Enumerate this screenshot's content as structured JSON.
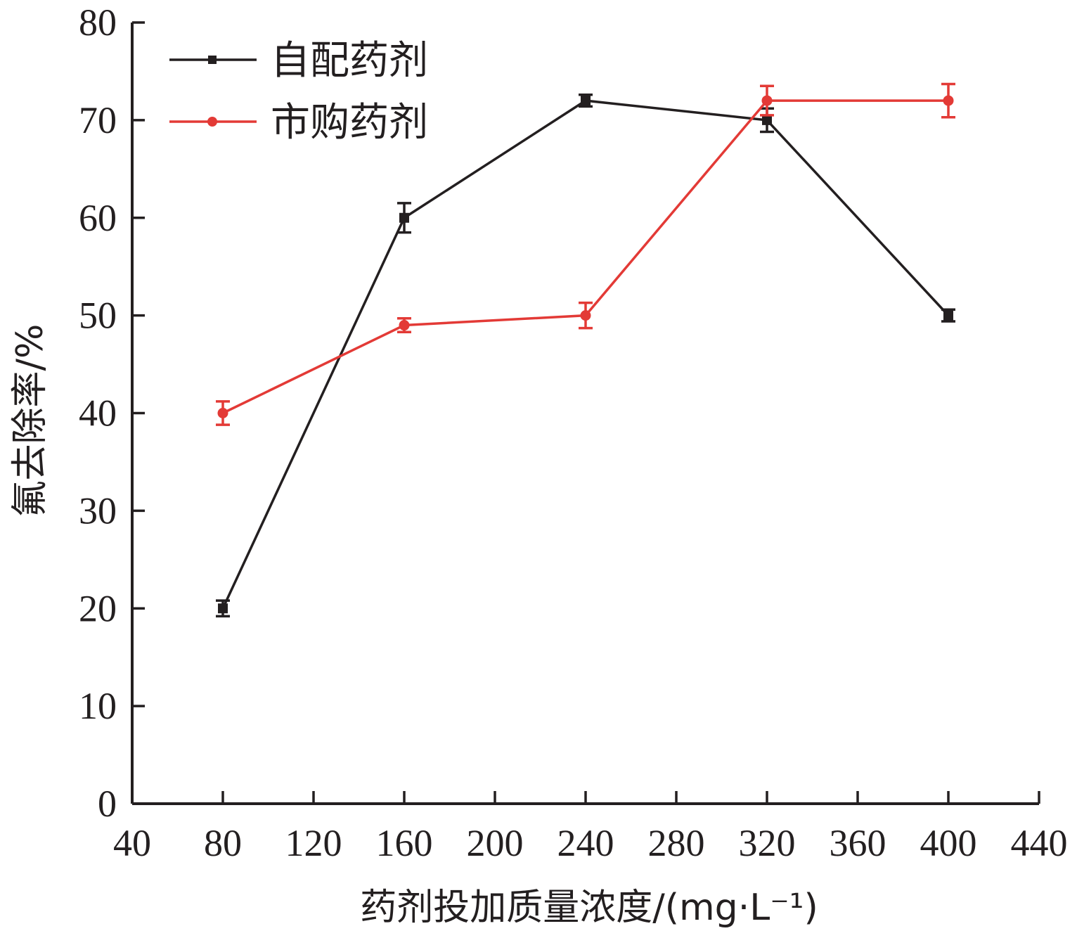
{
  "chart_data": {
    "type": "line",
    "xlabel": "药剂投加质量浓度/(mg·L⁻¹)",
    "ylabel": "氟去除率/%",
    "xlim": [
      40,
      440
    ],
    "ylim": [
      0,
      80
    ],
    "xticks": [
      40,
      80,
      120,
      160,
      200,
      240,
      280,
      320,
      360,
      400,
      440
    ],
    "yticks": [
      0,
      10,
      20,
      30,
      40,
      50,
      60,
      70,
      80
    ],
    "grid": false,
    "legend_position": "top-left",
    "x": [
      80,
      160,
      240,
      320,
      400
    ],
    "series": [
      {
        "name": "自配药剂",
        "color": "#231f20",
        "marker": "square",
        "values": [
          20,
          60,
          72,
          70,
          50
        ],
        "errors": [
          0.8,
          1.5,
          0.6,
          1.2,
          0.6
        ]
      },
      {
        "name": "市购药剂",
        "color": "#e33a36",
        "marker": "circle",
        "values": [
          40,
          49,
          50,
          72,
          72
        ],
        "errors": [
          1.2,
          0.7,
          1.3,
          1.5,
          1.7
        ]
      }
    ]
  }
}
